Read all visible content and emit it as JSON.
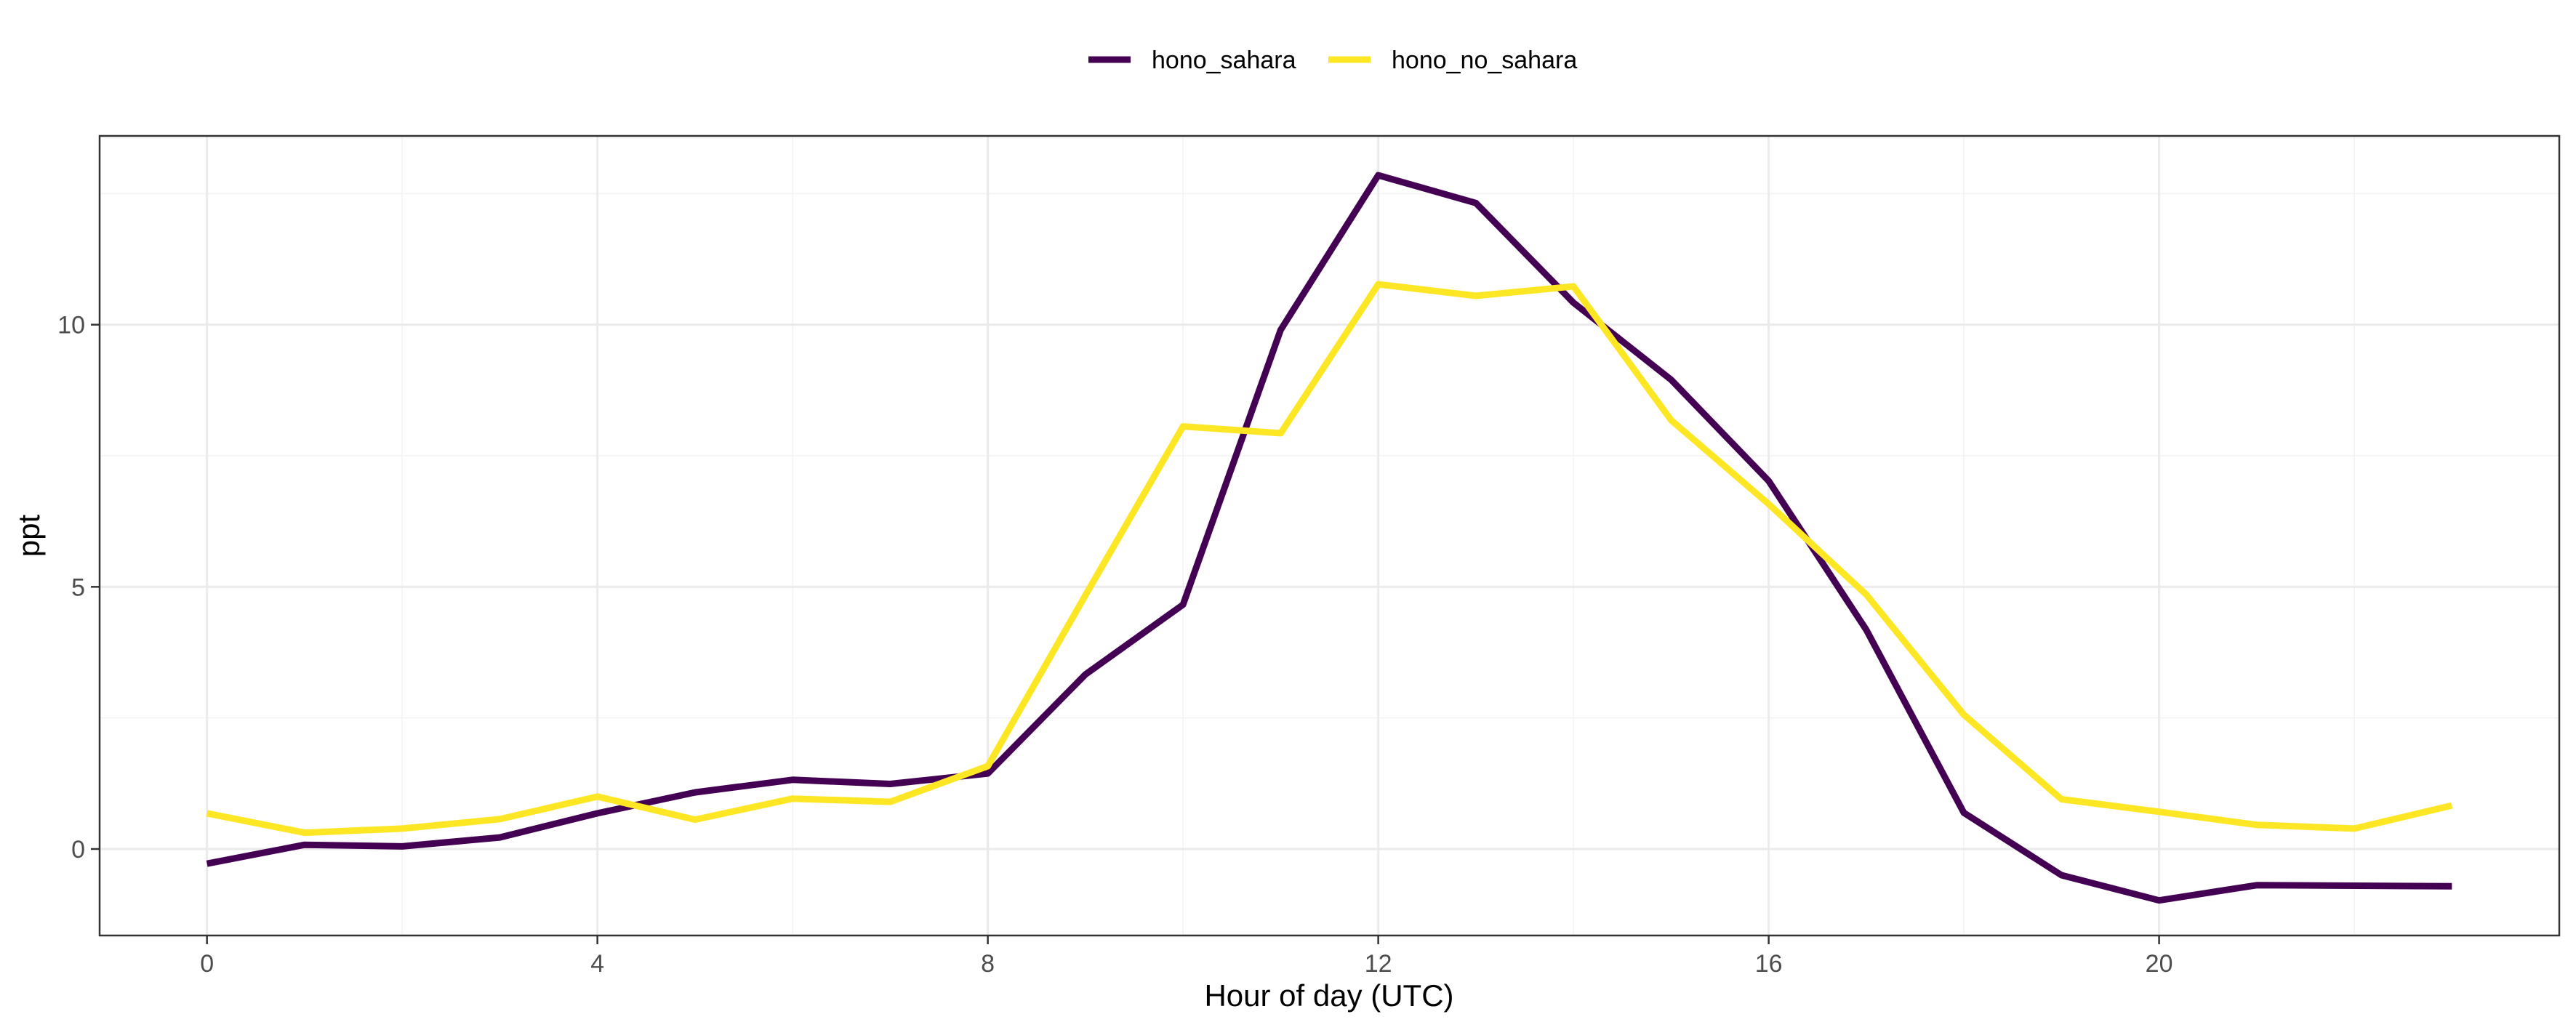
{
  "chart_data": {
    "type": "line",
    "title": "",
    "xlabel": "Hour of day (UTC)",
    "ylabel": "ppt",
    "x": [
      0,
      1,
      2,
      3,
      4,
      5,
      6,
      7,
      8,
      9,
      10,
      11,
      12,
      13,
      14,
      15,
      16,
      17,
      18,
      19,
      20,
      21,
      22,
      23
    ],
    "xlim": [
      -1.1,
      24.1
    ],
    "ylim": [
      -1.65,
      13.6
    ],
    "x_ticks": [
      0,
      4,
      8,
      12,
      16,
      20
    ],
    "x_tick_labels": [
      "0",
      "4",
      "8",
      "12",
      "16",
      "20"
    ],
    "y_ticks": [
      0,
      5,
      10
    ],
    "y_tick_labels": [
      "0",
      "5",
      "10"
    ],
    "grid": true,
    "legend_position": "top",
    "series": [
      {
        "name": "hono_sahara",
        "color": "#440154",
        "values": [
          -0.28,
          0.08,
          0.05,
          0.22,
          0.68,
          1.08,
          1.32,
          1.24,
          1.44,
          3.33,
          4.66,
          9.9,
          12.85,
          12.32,
          10.42,
          8.95,
          7.02,
          4.18,
          0.69,
          -0.5,
          -0.98,
          -0.69,
          -0.7,
          -0.71
        ]
      },
      {
        "name": "hono_no_sahara",
        "color": "#FDE725",
        "values": [
          0.68,
          0.31,
          0.39,
          0.57,
          1.0,
          0.56,
          0.96,
          0.9,
          1.58,
          4.84,
          8.06,
          7.93,
          10.77,
          10.55,
          10.73,
          8.18,
          6.58,
          4.85,
          2.56,
          0.95,
          0.71,
          0.46,
          0.39,
          0.83
        ]
      }
    ]
  }
}
